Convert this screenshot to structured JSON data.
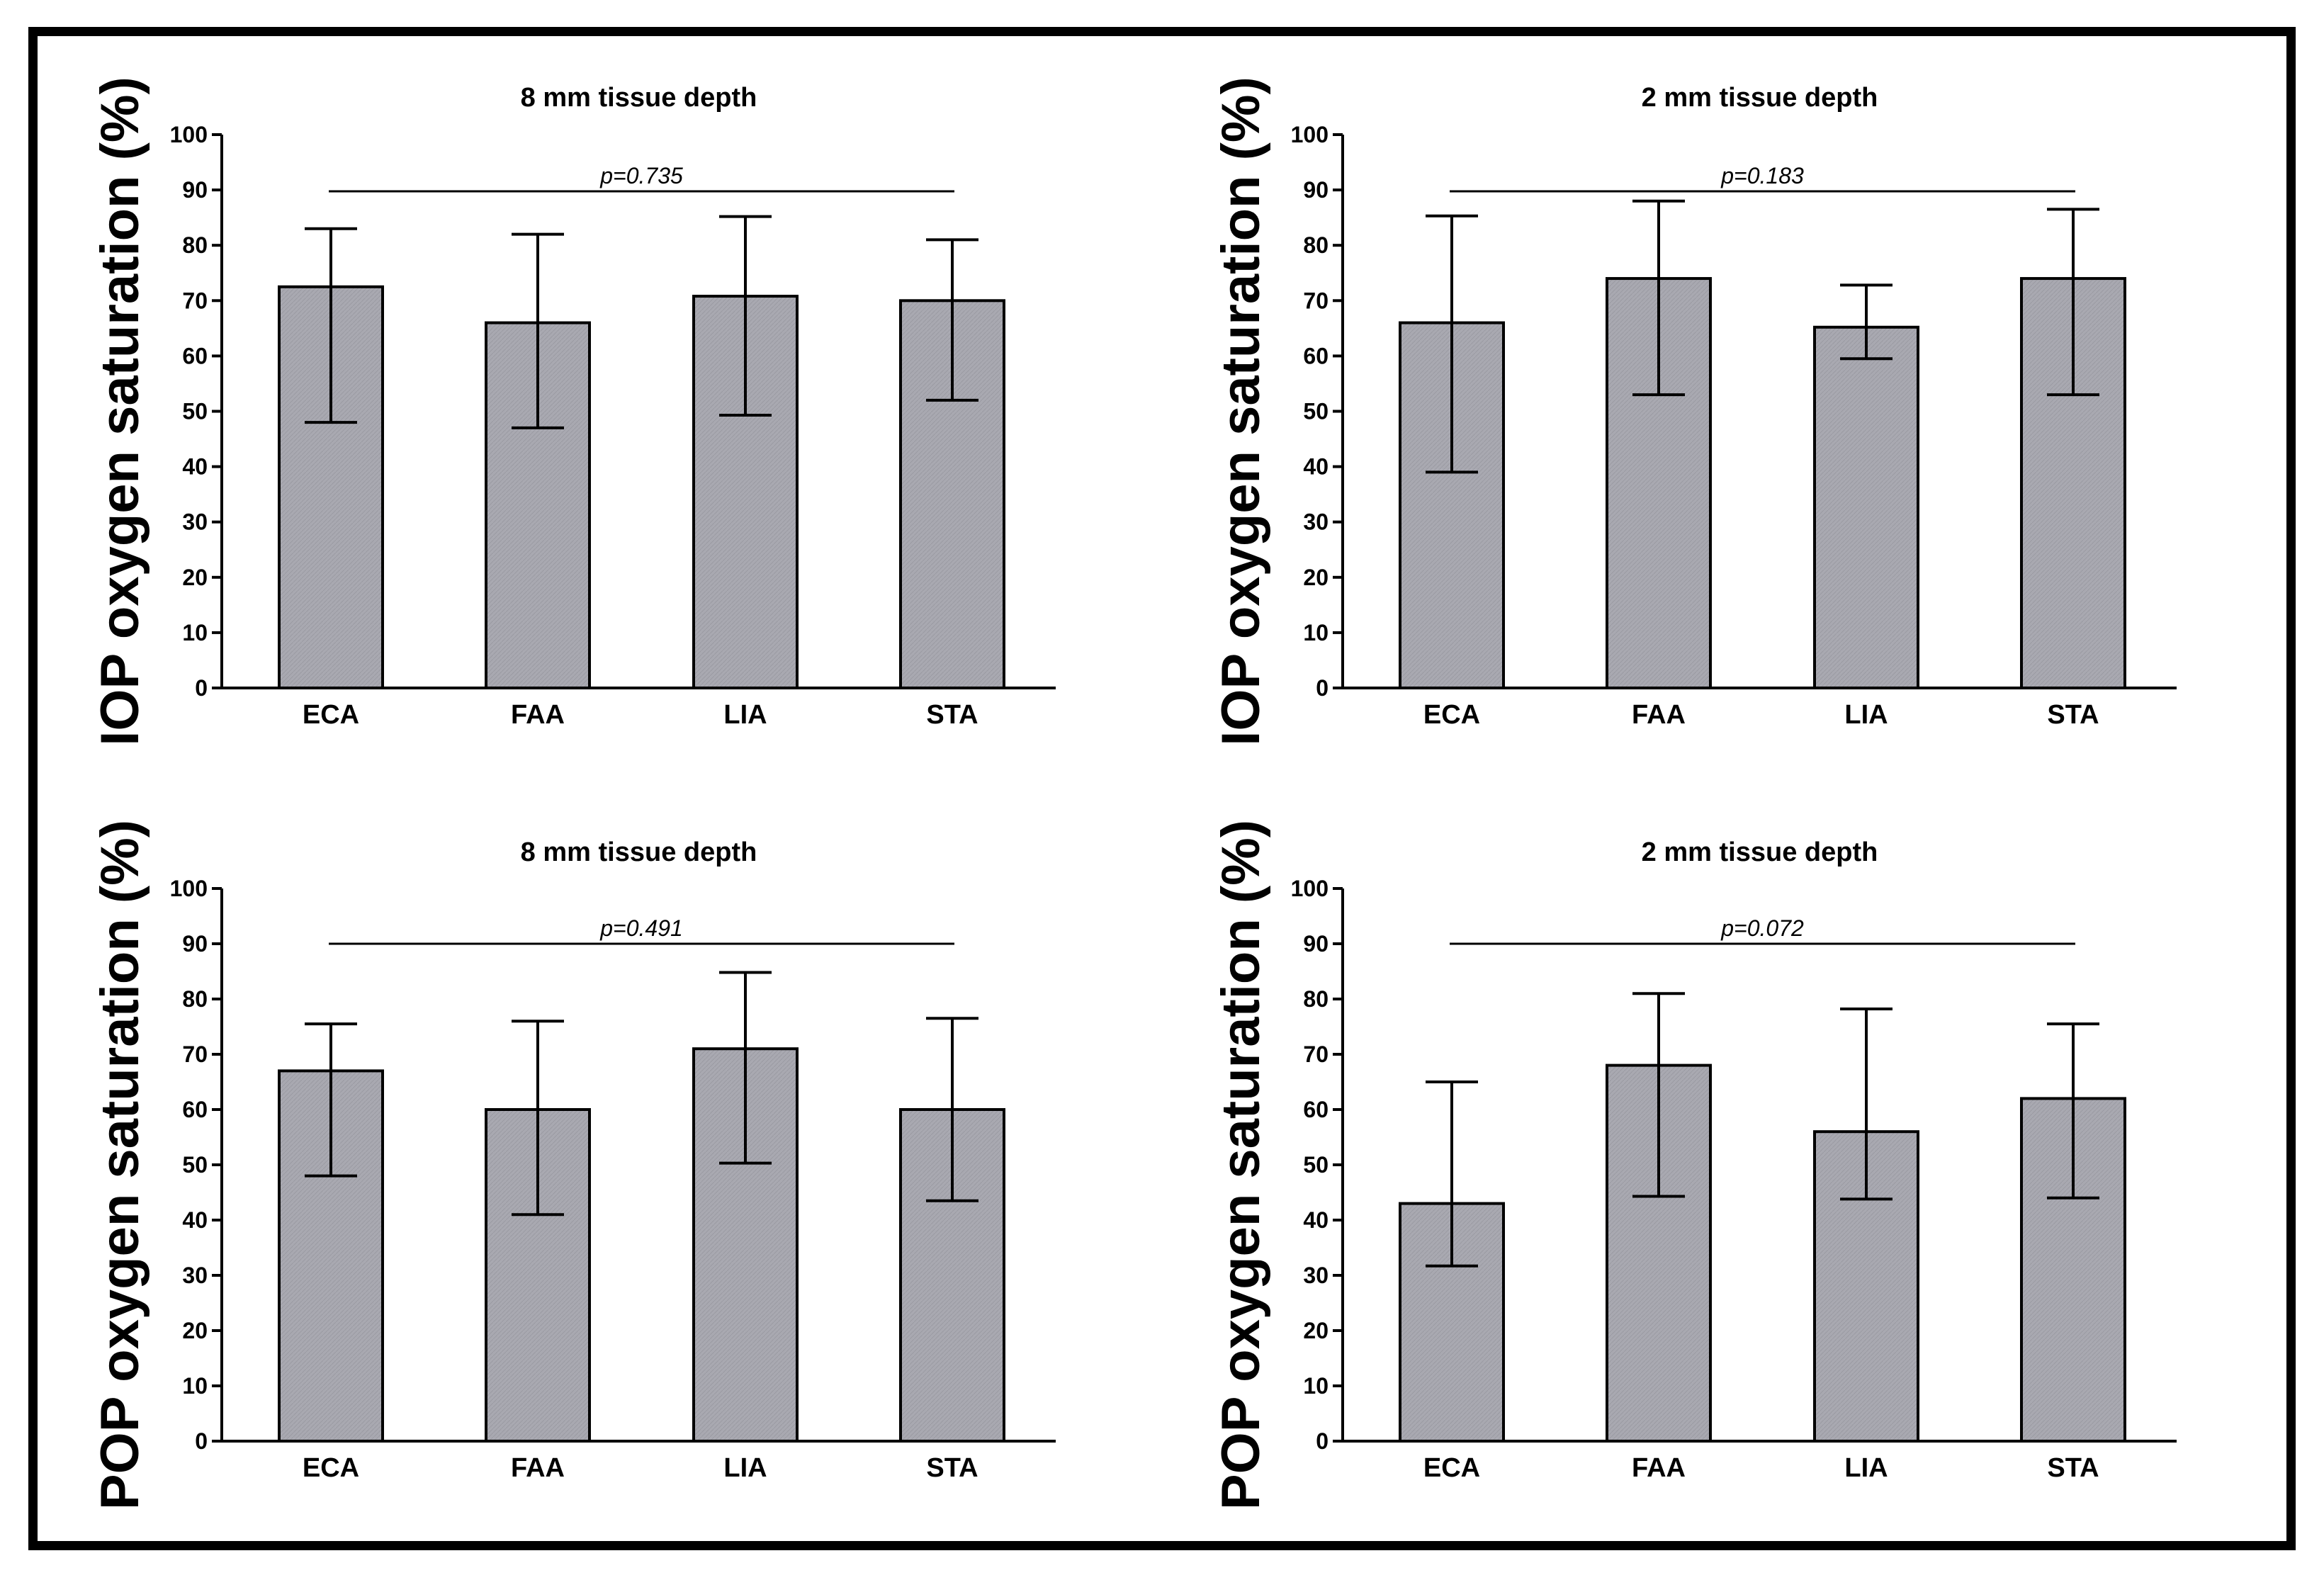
{
  "chart_data": [
    {
      "type": "bar",
      "title": "8 mm tissue depth",
      "ylabel": "IOP oxygen saturation (%)",
      "xlabel": "",
      "ylim": [
        0,
        100
      ],
      "yticks": [
        0,
        10,
        20,
        30,
        40,
        50,
        60,
        70,
        80,
        90,
        100
      ],
      "categories": [
        "ECA",
        "FAA",
        "LIA",
        "STA"
      ],
      "values": [
        72.5,
        66,
        70.8,
        70
      ],
      "error_low": [
        48,
        47,
        49.3,
        52
      ],
      "error_high": [
        83,
        82,
        85.2,
        81
      ],
      "annotation": "p=0.735",
      "bar_color": "#a8a8b0"
    },
    {
      "type": "bar",
      "title": "2 mm tissue depth",
      "ylabel": "IOP oxygen saturation (%)",
      "xlabel": "",
      "ylim": [
        0,
        100
      ],
      "yticks": [
        0,
        10,
        20,
        30,
        40,
        50,
        60,
        70,
        80,
        90,
        100
      ],
      "categories": [
        "ECA",
        "FAA",
        "LIA",
        "STA"
      ],
      "values": [
        66,
        74,
        65.2,
        74
      ],
      "error_low": [
        39,
        53,
        59.5,
        53
      ],
      "error_high": [
        85.3,
        88,
        72.8,
        86.5
      ],
      "annotation": "p=0.183",
      "bar_color": "#a8a8b0"
    },
    {
      "type": "bar",
      "title": "8 mm tissue depth",
      "ylabel": "POP oxygen saturation (%)",
      "xlabel": "",
      "ylim": [
        0,
        100
      ],
      "yticks": [
        0,
        10,
        20,
        30,
        40,
        50,
        60,
        70,
        80,
        90,
        100
      ],
      "categories": [
        "ECA",
        "FAA",
        "LIA",
        "STA"
      ],
      "values": [
        67,
        60,
        71,
        60
      ],
      "error_low": [
        48,
        41,
        50.3,
        43.5
      ],
      "error_high": [
        75.5,
        76,
        84.8,
        76.5
      ],
      "annotation": "p=0.491",
      "bar_color": "#a8a8b0"
    },
    {
      "type": "bar",
      "title": "2 mm tissue depth",
      "ylabel": "POP oxygen saturation (%)",
      "xlabel": "",
      "ylim": [
        0,
        100
      ],
      "yticks": [
        0,
        10,
        20,
        30,
        40,
        50,
        60,
        70,
        80,
        90,
        100
      ],
      "categories": [
        "ECA",
        "FAA",
        "LIA",
        "STA"
      ],
      "values": [
        43,
        68,
        56,
        62
      ],
      "error_low": [
        31.7,
        44.3,
        43.8,
        44
      ],
      "error_high": [
        65,
        81,
        78.2,
        75.5
      ],
      "annotation": "p=0.072",
      "bar_color": "#a8a8b0"
    }
  ]
}
